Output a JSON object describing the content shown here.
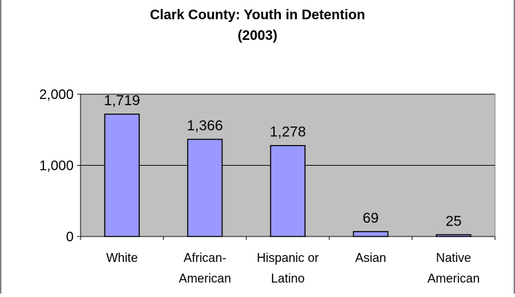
{
  "chart_data": {
    "type": "bar",
    "title_line1": "Clark County: Youth in Detention",
    "title_line2": "(2003)",
    "xlabel": "",
    "ylabel": "",
    "categories": [
      [
        "White"
      ],
      [
        "African-",
        "American"
      ],
      [
        "Hispanic or",
        "Latino"
      ],
      [
        "Asian"
      ],
      [
        "Native",
        "American"
      ]
    ],
    "values": [
      1719,
      1366,
      1278,
      69,
      25
    ],
    "value_labels": [
      "1,719",
      "1,366",
      "1,278",
      "69",
      "25"
    ],
    "ylim": [
      0,
      2000
    ],
    "yticks": [
      0,
      1000,
      2000
    ],
    "ytick_labels": [
      "0",
      "1,000",
      "2,000"
    ],
    "grid": true,
    "legend": "none",
    "colors": {
      "plot_background": "#c0c0c0",
      "bar_fill": "#9999ff",
      "bar_stroke": "#000000",
      "gridline": "#000000",
      "text": "#000000"
    }
  }
}
